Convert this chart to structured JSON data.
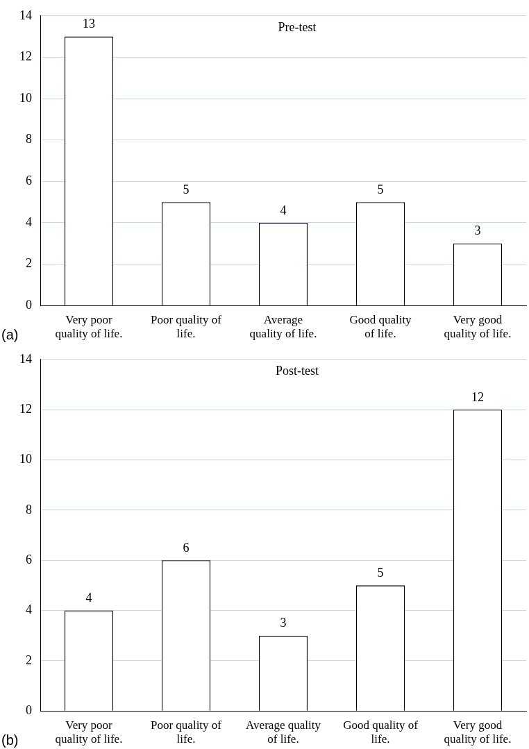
{
  "chart_data": [
    {
      "type": "bar",
      "title": "Pre-test",
      "categories": [
        "Very poor quality of life.",
        "Poor quality of life.",
        "Average quality of life.",
        "Good quality of life.",
        "Very good quality of life."
      ],
      "values": [
        13,
        5,
        4,
        5,
        3
      ],
      "color": "#ffffff",
      "ylim": [
        0,
        14
      ],
      "yticks": [
        0,
        2,
        4,
        6,
        8,
        10,
        12,
        14
      ],
      "grid": "y",
      "data_labels": true,
      "legend": false,
      "annotations": [
        "(a)"
      ]
    },
    {
      "type": "bar",
      "title": "Post-test",
      "categories": [
        "Very poor quality of life.",
        "Poor quality of life.",
        "Average quality of life.",
        "Good quality of life.",
        "Very good quality of life."
      ],
      "values": [
        4,
        6,
        3,
        5,
        12
      ],
      "color": "#ffffff",
      "ylim": [
        0,
        14
      ],
      "yticks": [
        0,
        2,
        4,
        6,
        8,
        10,
        12,
        14
      ],
      "grid": "y",
      "data_labels": true,
      "legend": false,
      "annotations": [
        "(b)"
      ]
    }
  ]
}
